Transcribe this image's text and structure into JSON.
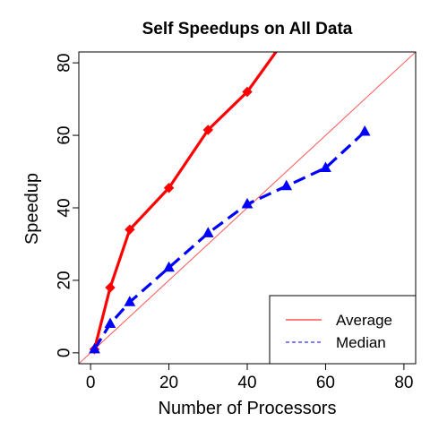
{
  "chart_data": {
    "type": "line",
    "title": "Self Speedups on All Data",
    "xlabel": "Number of Processors",
    "ylabel": "Speedup",
    "xlim": [
      -3,
      83
    ],
    "ylim": [
      -3,
      83
    ],
    "xticks": [
      0,
      20,
      40,
      60,
      80
    ],
    "yticks": [
      0,
      20,
      40,
      60,
      80
    ],
    "legend_position": "bottom-right",
    "reference_line": {
      "slope": 1,
      "intercept": 0,
      "color": "#ff5555"
    },
    "series": [
      {
        "name": "Average",
        "color": "#ff0000",
        "line_style": "solid",
        "marker": "diamond",
        "x": [
          1,
          5,
          10,
          20,
          30,
          40,
          48
        ],
        "y": [
          1,
          18,
          34,
          45.5,
          61.5,
          72,
          84
        ],
        "marker_count": 6
      },
      {
        "name": "Median",
        "color": "#0000ff",
        "line_style": "dashed",
        "marker": "triangle",
        "x": [
          1,
          5,
          10,
          20,
          30,
          40,
          50,
          60,
          70
        ],
        "y": [
          1,
          8,
          14,
          23.5,
          33,
          41,
          46,
          51,
          61
        ],
        "marker_count": 9
      }
    ]
  }
}
